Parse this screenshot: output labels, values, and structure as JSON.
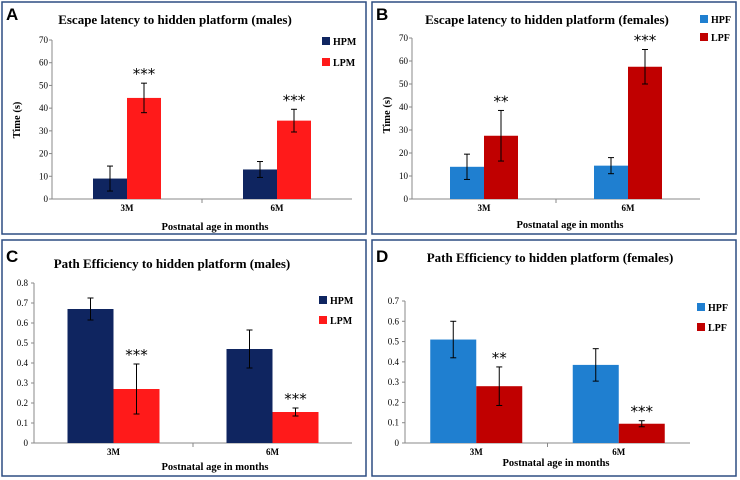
{
  "colors": {
    "border": "#2d4d82",
    "hpm": "#0f2560",
    "lpm": "#ff1a1a",
    "hpf": "#1f7fd0",
    "lpf": "#c00000"
  },
  "chart_data": [
    {
      "panel_label": "A",
      "type": "bar",
      "title": "Escape latency to hidden platform (males)",
      "xlabel": "Postnatal age  in months",
      "ylabel": "Time (s)",
      "categories": [
        "3M",
        "6M"
      ],
      "ylim": [
        0,
        70
      ],
      "yticks": [
        "0",
        "10",
        "20",
        "30",
        "40",
        "50",
        "60",
        "70"
      ],
      "series": [
        {
          "name": "HPM",
          "color": "#0f2560",
          "values": [
            9,
            13
          ],
          "errors": [
            5.5,
            3.5
          ],
          "stars": [
            "",
            ""
          ]
        },
        {
          "name": "LPM",
          "color": "#ff1a1a",
          "values": [
            44.5,
            34.5
          ],
          "errors": [
            6.5,
            5
          ],
          "stars": [
            "***",
            "***"
          ]
        }
      ],
      "legend": "top-right"
    },
    {
      "panel_label": "B",
      "type": "bar",
      "title": "Escape latency to hidden platform (females)",
      "xlabel": "Postnatal age in months",
      "ylabel": "Time (s)",
      "categories": [
        "3M",
        "6M"
      ],
      "ylim": [
        0,
        70
      ],
      "yticks": [
        "0",
        "10",
        "20",
        "30",
        "40",
        "50",
        "60",
        "70"
      ],
      "series": [
        {
          "name": "HPF",
          "color": "#1f7fd0",
          "values": [
            14,
            14.5
          ],
          "errors": [
            5.5,
            3.5
          ],
          "stars": [
            "",
            ""
          ]
        },
        {
          "name": "LPF",
          "color": "#c00000",
          "values": [
            27.5,
            57.5
          ],
          "errors": [
            11,
            7.5
          ],
          "stars": [
            "**",
            "***"
          ]
        }
      ],
      "legend": "top-right"
    },
    {
      "panel_label": "C",
      "type": "bar",
      "title": "Path Efficiency to hidden platform (males)",
      "xlabel": "Postnatal age in months",
      "ylabel": "",
      "categories": [
        "3M",
        "6M"
      ],
      "ylim": [
        0,
        0.8
      ],
      "yticks": [
        "0",
        "0.1",
        "0.2",
        "0.3",
        "0.4",
        "0.5",
        "0.6",
        "0.7",
        "0.8"
      ],
      "series": [
        {
          "name": "HPM",
          "color": "#0f2560",
          "values": [
            0.67,
            0.47
          ],
          "errors": [
            0.055,
            0.095
          ],
          "stars": [
            "",
            ""
          ]
        },
        {
          "name": "LPM",
          "color": "#ff1a1a",
          "values": [
            0.27,
            0.155
          ],
          "errors": [
            0.125,
            0.02
          ],
          "stars": [
            "***",
            "***"
          ]
        }
      ],
      "legend": "top-right"
    },
    {
      "panel_label": "D",
      "type": "bar",
      "title": "Path Efficiency to hidden platform  (females)",
      "xlabel": "Postnatal age in months",
      "ylabel": "",
      "categories": [
        "3M",
        "6M"
      ],
      "ylim": [
        0,
        0.7
      ],
      "yticks": [
        "0",
        "0.1",
        "0.2",
        "0.3",
        "0.4",
        "0.5",
        "0.6",
        "0.7"
      ],
      "series": [
        {
          "name": "HPF",
          "color": "#1f7fd0",
          "values": [
            0.51,
            0.385
          ],
          "errors": [
            0.09,
            0.08
          ],
          "stars": [
            "",
            ""
          ]
        },
        {
          "name": "LPF",
          "color": "#c00000",
          "values": [
            0.28,
            0.095
          ],
          "errors": [
            0.095,
            0.015
          ],
          "stars": [
            "**",
            "***"
          ]
        }
      ],
      "legend": "top-right"
    }
  ]
}
